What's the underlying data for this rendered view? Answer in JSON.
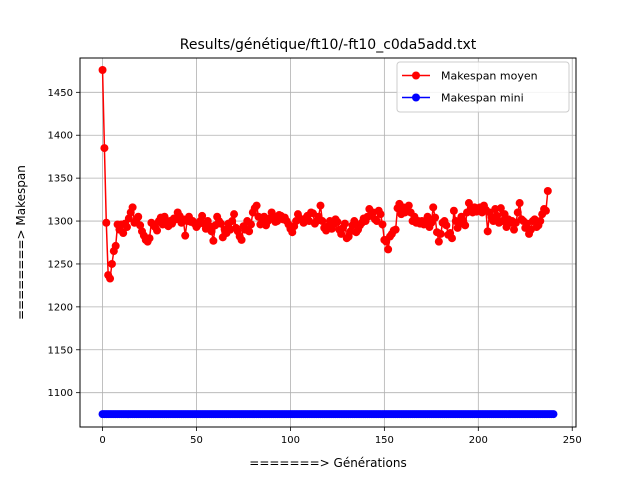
{
  "chart_data": {
    "type": "line",
    "title": "Results/génétique/ft10/-ft10_c0da5add.txt",
    "xlabel": "=======> Générations",
    "ylabel": "========> Makespan",
    "xlim": [
      -12,
      252
    ],
    "ylim": [
      1060,
      1490
    ],
    "xticks": [
      0,
      50,
      100,
      150,
      200,
      250
    ],
    "yticks": [
      1100,
      1150,
      1200,
      1250,
      1300,
      1350,
      1400,
      1450
    ],
    "grid": true,
    "legend_position": "top-right",
    "series": [
      {
        "name": "Makespan moyen",
        "color": "#ff0000",
        "marker": "circle",
        "values": [
          1476,
          1385,
          1298,
          1237,
          1233,
          1250,
          1265,
          1271,
          1296,
          1290,
          1296,
          1286,
          1297,
          1293,
          1303,
          1310,
          1316,
          1298,
          1301,
          1305,
          1295,
          1288,
          1283,
          1278,
          1276,
          1280,
          1298,
          1296,
          1293,
          1289,
          1300,
          1304,
          1296,
          1305,
          1299,
          1294,
          1300,
          1297,
          1303,
          1302,
          1310,
          1306,
          1298,
          1302,
          1283,
          1300,
          1305,
          1299,
          1300,
          1297,
          1293,
          1296,
          1300,
          1306,
          1297,
          1291,
          1300,
          1294,
          1288,
          1277,
          1295,
          1305,
          1300,
          1297,
          1281,
          1290,
          1286,
          1297,
          1290,
          1300,
          1308,
          1292,
          1288,
          1282,
          1278,
          1294,
          1290,
          1300,
          1288,
          1296,
          1310,
          1315,
          1318,
          1305,
          1296,
          1300,
          1305,
          1295,
          1300,
          1303,
          1310,
          1306,
          1299,
          1300,
          1307,
          1306,
          1302,
          1304,
          1300,
          1296,
          1291,
          1287,
          1294,
          1300,
          1308,
          1303,
          1301,
          1298,
          1303,
          1306,
          1300,
          1310,
          1309,
          1297,
          1300,
          1305,
          1318,
          1300,
          1292,
          1289,
          1294,
          1300,
          1291,
          1296,
          1302,
          1299,
          1290,
          1285,
          1292,
          1297,
          1280,
          1282,
          1288,
          1295,
          1300,
          1287,
          1290,
          1295,
          1298,
          1303,
          1300,
          1305,
          1314,
          1306,
          1310,
          1302,
          1300,
          1312,
          1308,
          1296,
          1278,
          1276,
          1267,
          1282,
          1285,
          1289,
          1290,
          1315,
          1320,
          1308,
          1316,
          1310,
          1314,
          1318,
          1310,
          1300,
          1305,
          1298,
          1300,
          1297,
          1300,
          1296,
          1300,
          1305,
          1293,
          1298,
          1316,
          1304,
          1287,
          1276,
          1285,
          1298,
          1300,
          1295,
          1284,
          1286,
          1280,
          1312,
          1300,
          1292,
          1297,
          1305,
          1300,
          1295,
          1310,
          1321,
          1315,
          1310,
          1316,
          1311,
          1315,
          1316,
          1310,
          1318,
          1313,
          1288,
          1310,
          1305,
          1300,
          1314,
          1306,
          1298,
          1315,
          1300,
          1308,
          1293,
          1302,
          1298,
          1300,
          1290,
          1298,
          1310,
          1321,
          1302,
          1300,
          1292,
          1297,
          1285,
          1290,
          1300,
          1302,
          1293,
          1295,
          1300,
          1308,
          1314,
          1312,
          1335
        ]
      },
      {
        "name": "Makespan mini",
        "color": "#0000ff",
        "marker": "circle",
        "constant": 1075,
        "count": 241
      }
    ]
  }
}
